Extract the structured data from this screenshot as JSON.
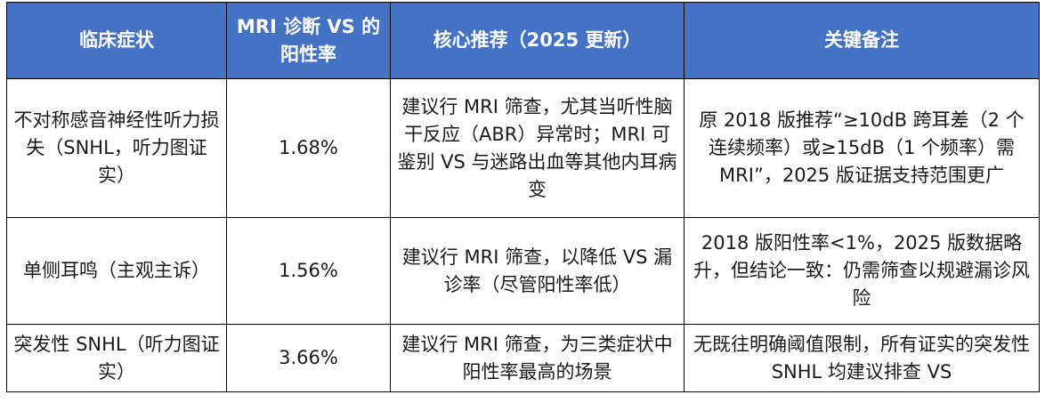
{
  "table": {
    "headers": [
      "临床症状",
      "MRI 诊断 VS 的阳性率",
      "核心推荐（2025 更新）",
      "关键备注"
    ],
    "rows": [
      {
        "symptom": "不对称感音神经性听力损失（SNHL，听力图证实）",
        "rate": "1.68%",
        "recommendation": "建议行 MRI 筛查，尤其当听性脑干反应（ABR）异常时；MRI 可鉴别 VS 与迷路出血等其他内耳病变",
        "note": "原 2018 版推荐“≥10dB 跨耳差（2 个连续频率）或≥15dB（1 个频率）需 MRI”，2025 版证据支持范围更广"
      },
      {
        "symptom": "单侧耳鸣（主观主诉）",
        "rate": "1.56%",
        "recommendation": "建议行 MRI 筛查，以降低 VS 漏诊率（尽管阳性率低）",
        "note": "2018 版阳性率<1%，2025 版数据略升，但结论一致：仍需筛查以规避漏诊风险"
      },
      {
        "symptom": "突发性 SNHL（听力图证实）",
        "rate": "3.66%",
        "recommendation": "建议行 MRI 筛查，为三类症状中阳性率最高的场景",
        "note": "无既往明确阈值限制，所有证实的突发性 SNHL 均建议排查 VS"
      }
    ]
  },
  "colors": {
    "header_bg": "#4472c4",
    "header_text": "#ffffff",
    "border": "#000000",
    "body_text": "#1a1a1a"
  }
}
